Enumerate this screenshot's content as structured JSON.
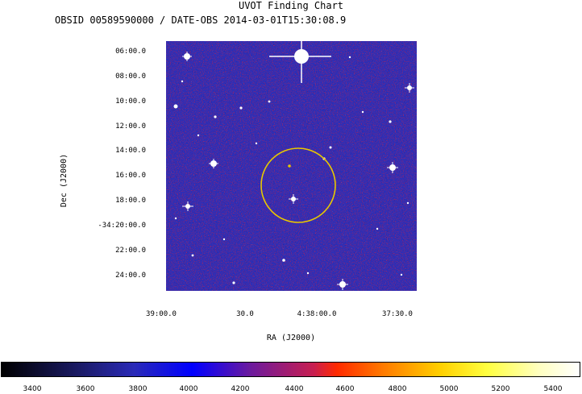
{
  "title": "UVOT Finding Chart",
  "subtitle": "OBSID 00589590000 / DATE-OBS 2014-03-01T15:30:08.9",
  "axes": {
    "xlabel": "RA (J2000)",
    "ylabel": "Dec (J2000)",
    "dec_ticks": [
      "06:00.0",
      "08:00.0",
      "10:00.0",
      "12:00.0",
      "14:00.0",
      "16:00.0",
      "18:00.0",
      "-34:20:00.0",
      "22:00.0",
      "24:00.0"
    ],
    "ra_ticks": [
      "39:00.0",
      "30.0",
      "4:38:00.0",
      "37:30.0"
    ]
  },
  "colorbar": {
    "ticks": [
      "3400",
      "3600",
      "3800",
      "4000",
      "4200",
      "4400",
      "4600",
      "4800",
      "5000",
      "5200",
      "5400"
    ]
  },
  "colors": {
    "background_field": "#2b2fb8",
    "circle": "#e8c800",
    "star": "#ffffff"
  }
}
